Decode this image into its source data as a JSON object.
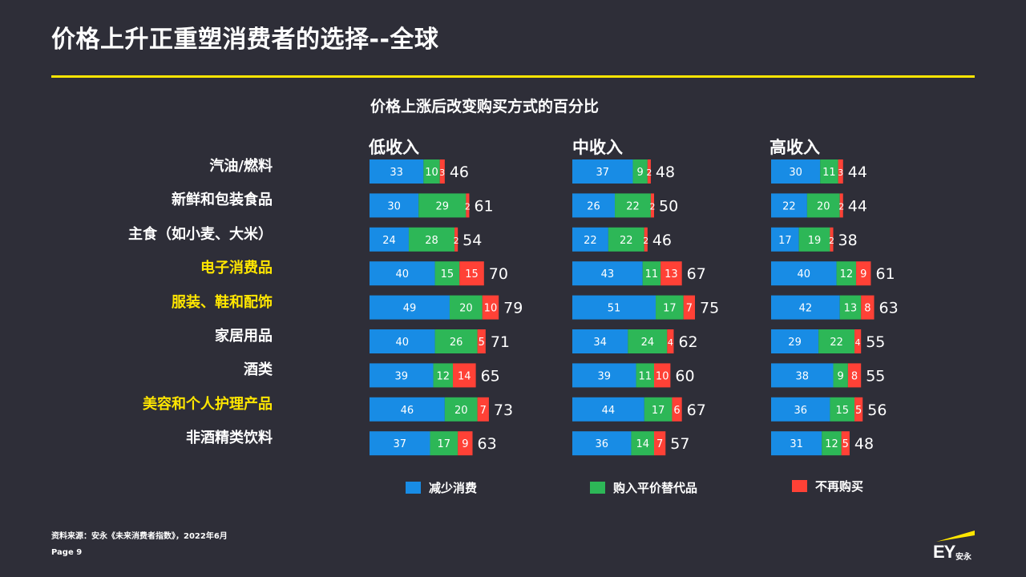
{
  "title": "价格上升正重塑消费者的选择--全球",
  "chart_data": {
    "type": "bar",
    "title": "价格上涨后改变购买方式的百分比",
    "stacked": true,
    "orientation": "horizontal",
    "categories": [
      "汽油/燃料",
      "新鲜和包装食品",
      "主食（如小麦、大米）",
      "电子消费品",
      "服装、鞋和配饰",
      "家居用品",
      "酒类",
      "美容和个人护理产品",
      "非酒精类饮料"
    ],
    "highlighted_categories": [
      "电子消费品",
      "服装、鞋和配饰",
      "美容和个人护理产品"
    ],
    "series_names": [
      "减少消费",
      "购入平价替代品",
      "不再购买"
    ],
    "series_colors": [
      "#188ce5",
      "#2db757",
      "#ff4136"
    ],
    "groups": [
      {
        "name": "低收入",
        "values": [
          [
            33,
            10,
            3
          ],
          [
            30,
            29,
            2
          ],
          [
            24,
            28,
            2
          ],
          [
            40,
            15,
            15
          ],
          [
            49,
            20,
            10
          ],
          [
            40,
            26,
            5
          ],
          [
            39,
            12,
            14
          ],
          [
            46,
            20,
            7
          ],
          [
            37,
            17,
            9
          ]
        ],
        "totals": [
          46,
          61,
          54,
          70,
          79,
          71,
          65,
          73,
          63
        ]
      },
      {
        "name": "中收入",
        "values": [
          [
            37,
            9,
            2
          ],
          [
            26,
            22,
            2
          ],
          [
            22,
            22,
            2
          ],
          [
            43,
            11,
            13
          ],
          [
            51,
            17,
            7
          ],
          [
            34,
            24,
            4
          ],
          [
            39,
            11,
            10
          ],
          [
            44,
            17,
            6
          ],
          [
            36,
            14,
            7
          ]
        ],
        "totals": [
          48,
          50,
          46,
          67,
          75,
          62,
          60,
          67,
          57
        ]
      },
      {
        "name": "高收入",
        "values": [
          [
            30,
            11,
            3
          ],
          [
            22,
            20,
            2
          ],
          [
            17,
            19,
            2
          ],
          [
            40,
            12,
            9
          ],
          [
            42,
            13,
            8
          ],
          [
            29,
            22,
            4
          ],
          [
            38,
            9,
            8
          ],
          [
            36,
            15,
            5
          ],
          [
            31,
            12,
            5
          ]
        ],
        "totals": [
          44,
          44,
          38,
          61,
          63,
          55,
          55,
          56,
          48
        ]
      }
    ]
  },
  "legend": [
    {
      "label": "减少消费",
      "color": "#188ce5"
    },
    {
      "label": "购入平价替代品",
      "color": "#2db757"
    },
    {
      "label": "不再购买",
      "color": "#ff4136"
    }
  ],
  "source": "资料来源：安永《未来消费者指数》，2022年6月",
  "page": "Page 9",
  "logo": {
    "text": "EY",
    "cn": "安永",
    "accent_color": "#ffe600"
  }
}
